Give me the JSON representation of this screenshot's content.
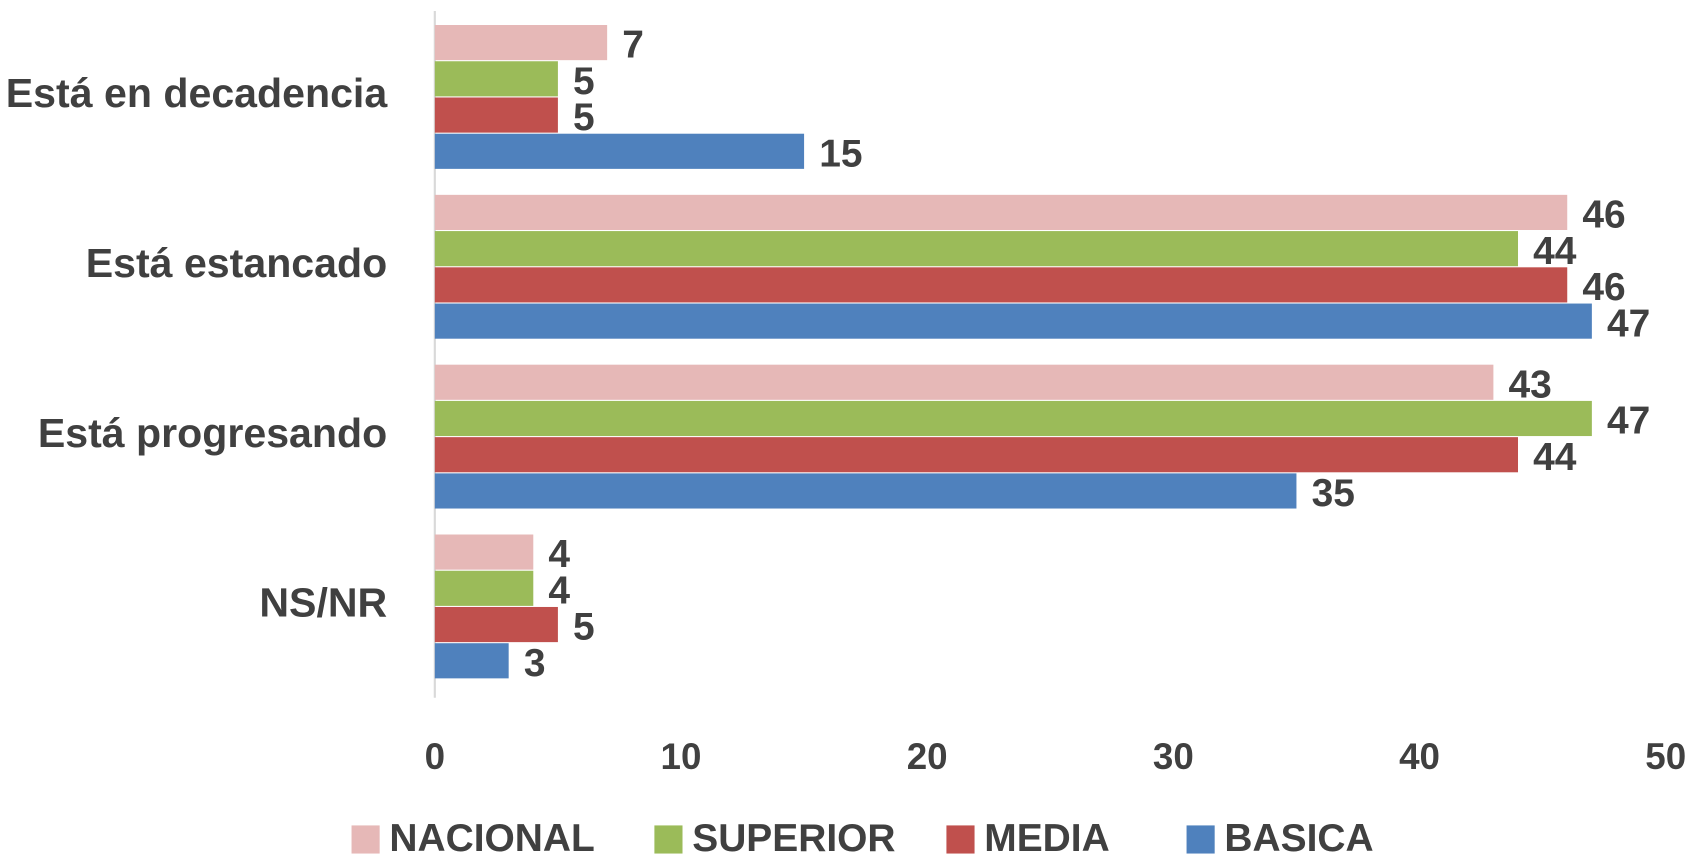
{
  "chart_data": {
    "type": "hbar",
    "categories": [
      "Está en decadencia",
      "Está estancado",
      "Está progresando",
      "NS/NR"
    ],
    "series": [
      {
        "name": "NACIONAL",
        "color": "#e6b8b7",
        "values": [
          7,
          46,
          43,
          4
        ]
      },
      {
        "name": "SUPERIOR",
        "color": "#9bbb59",
        "values": [
          5,
          44,
          47,
          4
        ]
      },
      {
        "name": "MEDIA",
        "color": "#c0504d",
        "values": [
          5,
          46,
          44,
          5
        ]
      },
      {
        "name": "BASICA",
        "color": "#4f81bd",
        "values": [
          15,
          47,
          35,
          3
        ]
      }
    ],
    "xlim": [
      0,
      50
    ],
    "xticks": [
      0,
      10,
      20,
      30,
      40,
      50
    ],
    "grid": false,
    "legend": "bottom"
  }
}
